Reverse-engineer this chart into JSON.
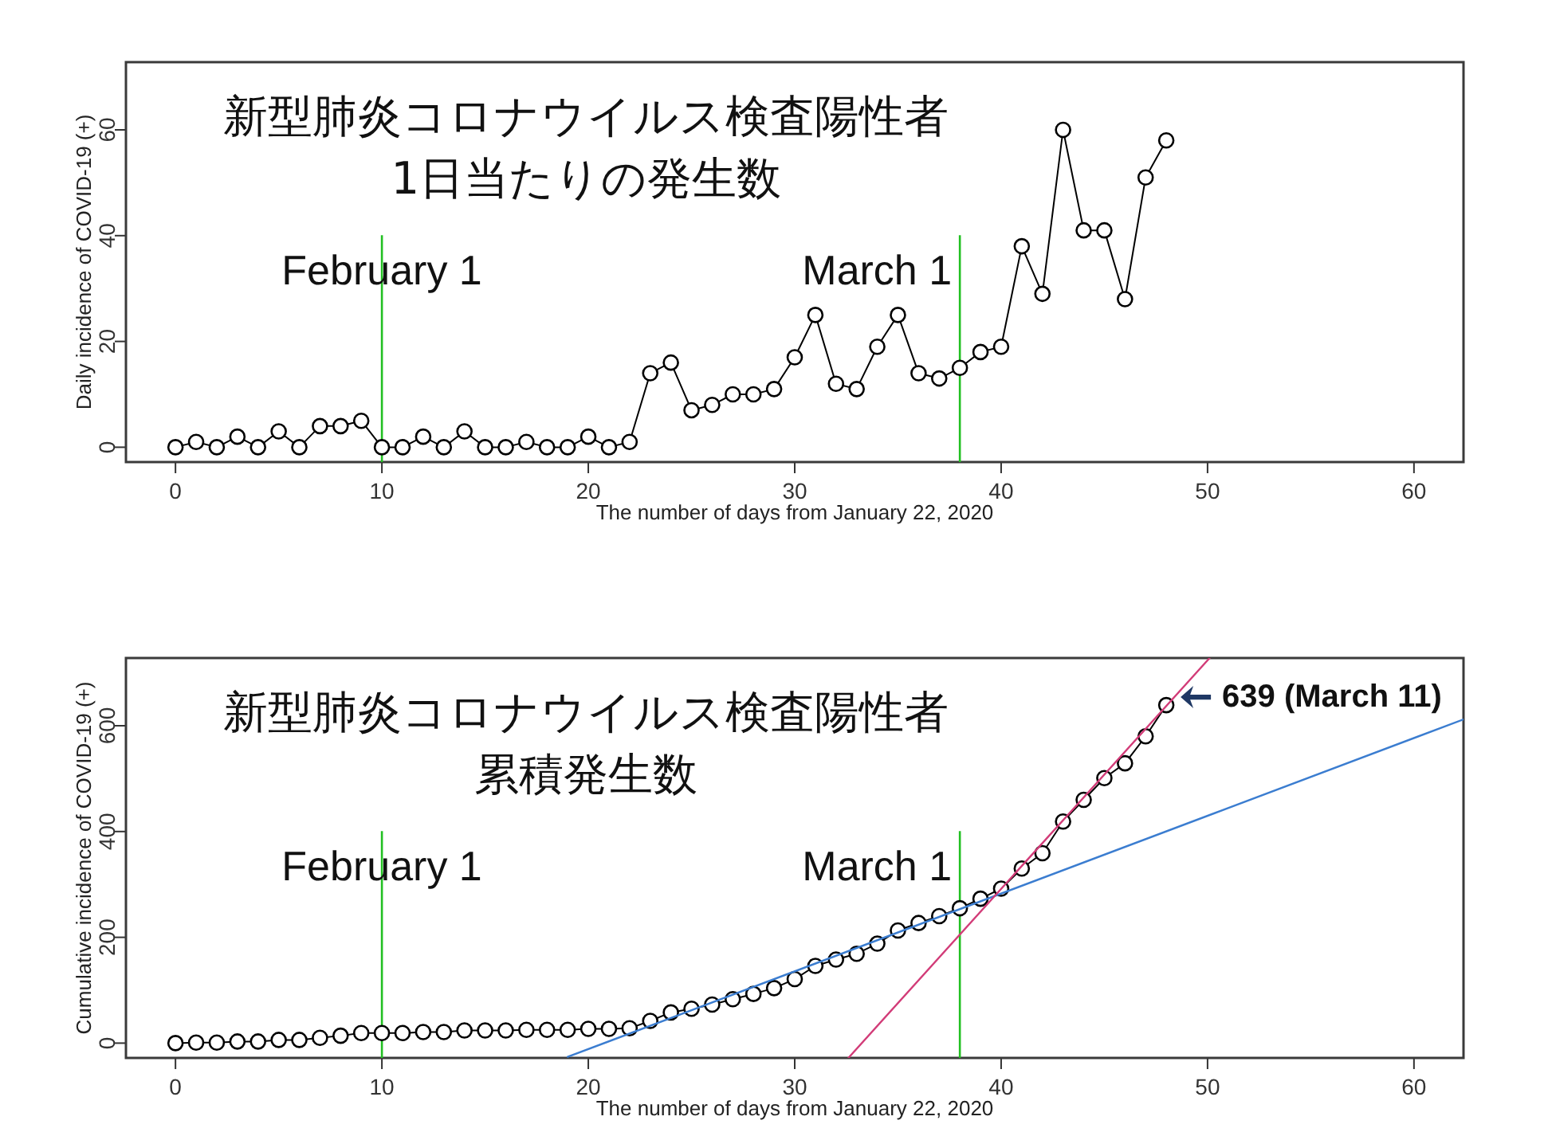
{
  "chart_data": [
    {
      "type": "line",
      "title": "新型肺炎コロナウイルス検査陽性者",
      "subtitle": "1日当たりの発生数",
      "xlabel": "The number of days from January 22, 2020",
      "ylabel": "Daily incidence of COVID-19 (+)",
      "marker": "circle",
      "x": [
        0,
        1,
        2,
        3,
        4,
        5,
        6,
        7,
        8,
        9,
        10,
        11,
        12,
        13,
        14,
        15,
        16,
        17,
        18,
        19,
        20,
        21,
        22,
        23,
        24,
        25,
        26,
        27,
        28,
        29,
        30,
        31,
        32,
        33,
        34,
        35,
        36,
        37,
        38,
        39,
        40,
        41,
        42,
        43,
        44,
        45,
        46,
        47,
        48
      ],
      "series": [
        {
          "color": "#000000",
          "values": [
            0,
            1,
            0,
            2,
            0,
            3,
            0,
            4,
            4,
            5,
            0,
            0,
            2,
            0,
            3,
            0,
            0,
            1,
            0,
            0,
            2,
            0,
            1,
            14,
            16,
            7,
            8,
            10,
            10,
            11,
            17,
            25,
            12,
            11,
            19,
            25,
            14,
            13,
            15,
            18,
            19,
            38,
            29,
            60,
            41,
            41,
            28,
            51,
            58
          ]
        }
      ],
      "xlim": [
        -2.4,
        62.4
      ],
      "ylim": [
        -2.8,
        72.8
      ],
      "xticks": [
        0,
        10,
        20,
        30,
        40,
        50,
        60
      ],
      "yticks": [
        0,
        20,
        40,
        60
      ],
      "ref_lines": [
        {
          "axis": "x",
          "value": 10,
          "label": "February 1",
          "color": "#22c022"
        },
        {
          "axis": "x",
          "value": 38,
          "label": "March 1",
          "color": "#22c022"
        }
      ]
    },
    {
      "type": "line",
      "title": "新型肺炎コロナウイルス検査陽性者",
      "subtitle": "累積発生数",
      "xlabel": "The number of days from January 22, 2020",
      "ylabel": "Cumulative incidence of COVID-19 (+)",
      "marker": "circle",
      "x": [
        0,
        1,
        2,
        3,
        4,
        5,
        6,
        7,
        8,
        9,
        10,
        11,
        12,
        13,
        14,
        15,
        16,
        17,
        18,
        19,
        20,
        21,
        22,
        23,
        24,
        25,
        26,
        27,
        28,
        29,
        30,
        31,
        32,
        33,
        34,
        35,
        36,
        37,
        38,
        39,
        40,
        41,
        42,
        43,
        44,
        45,
        46,
        47,
        48
      ],
      "series": [
        {
          "color": "#000000",
          "values": [
            0,
            1,
            1,
            3,
            3,
            6,
            6,
            10,
            14,
            19,
            19,
            19,
            21,
            21,
            24,
            24,
            24,
            25,
            25,
            25,
            27,
            27,
            28,
            42,
            58,
            65,
            73,
            83,
            93,
            104,
            121,
            146,
            158,
            169,
            188,
            213,
            227,
            240,
            255,
            273,
            292,
            330,
            359,
            419,
            460,
            501,
            529,
            580,
            639
          ]
        },
        {
          "type": "line",
          "color": "#3b7dd0",
          "marker": "none",
          "x": [
            19,
            62.4
          ],
          "values": [
            -26,
            612
          ]
        },
        {
          "type": "line",
          "color": "#d23c78",
          "marker": "none",
          "x": [
            32.6,
            50.1
          ],
          "values": [
            -28,
            728
          ]
        }
      ],
      "xlim": [
        -2.4,
        62.4
      ],
      "ylim": [
        -28,
        728
      ],
      "xticks": [
        0,
        10,
        20,
        30,
        40,
        50,
        60
      ],
      "yticks": [
        0,
        200,
        400,
        600
      ],
      "ref_lines": [
        {
          "axis": "x",
          "value": 10,
          "label": "February 1",
          "color": "#22c022"
        },
        {
          "axis": "x",
          "value": 38,
          "label": "March 1",
          "color": "#22c022"
        }
      ],
      "annotations": [
        {
          "text": "639 (March 11)",
          "x": 48,
          "y": 639
        }
      ]
    }
  ]
}
